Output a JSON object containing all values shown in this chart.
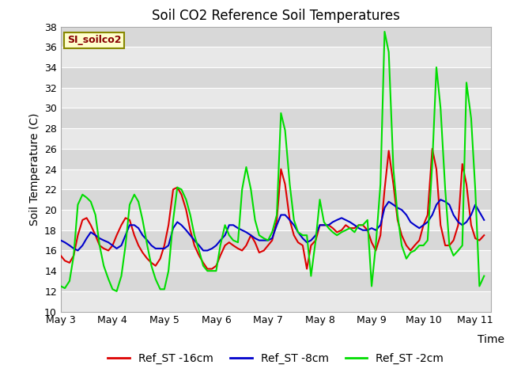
{
  "title": "Soil CO2 Reference Soil Temperatures",
  "xlabel": "Time",
  "ylabel": "Soil Temperature (C)",
  "ylim": [
    10,
    38
  ],
  "yticks": [
    10,
    12,
    14,
    16,
    18,
    20,
    22,
    24,
    26,
    28,
    30,
    32,
    34,
    36,
    38
  ],
  "legend_label": "SI_soilco2",
  "series": {
    "Ref_ST -16cm": {
      "color": "#dd0000",
      "x": [
        3.0,
        3.08,
        3.17,
        3.25,
        3.33,
        3.42,
        3.5,
        3.58,
        3.67,
        3.75,
        3.83,
        3.92,
        4.0,
        4.08,
        4.17,
        4.25,
        4.33,
        4.42,
        4.5,
        4.58,
        4.67,
        4.75,
        4.83,
        4.92,
        5.0,
        5.08,
        5.17,
        5.25,
        5.33,
        5.42,
        5.5,
        5.58,
        5.67,
        5.75,
        5.83,
        5.92,
        6.0,
        6.08,
        6.17,
        6.25,
        6.33,
        6.42,
        6.5,
        6.58,
        6.67,
        6.75,
        6.83,
        6.92,
        7.0,
        7.08,
        7.17,
        7.25,
        7.33,
        7.42,
        7.5,
        7.58,
        7.67,
        7.75,
        7.83,
        7.92,
        8.0,
        8.08,
        8.17,
        8.25,
        8.33,
        8.42,
        8.5,
        8.58,
        8.67,
        8.75,
        8.83,
        8.92,
        9.0,
        9.08,
        9.17,
        9.25,
        9.33,
        9.42,
        9.5,
        9.58,
        9.67,
        9.75,
        9.83,
        9.92,
        10.0,
        10.08,
        10.17,
        10.25,
        10.33,
        10.42,
        10.5,
        10.58,
        10.67,
        10.75,
        10.83,
        10.92,
        11.0,
        11.08,
        11.17
      ],
      "y": [
        15.5,
        15.0,
        14.8,
        15.5,
        17.5,
        19.0,
        19.2,
        18.5,
        17.5,
        16.5,
        16.2,
        16.0,
        16.5,
        17.5,
        18.5,
        19.2,
        19.0,
        17.5,
        16.5,
        15.8,
        15.2,
        14.8,
        14.5,
        15.2,
        16.5,
        18.5,
        22.0,
        22.2,
        21.5,
        20.0,
        18.0,
        16.5,
        15.5,
        14.8,
        14.2,
        14.2,
        14.5,
        15.5,
        16.5,
        16.8,
        16.5,
        16.2,
        16.0,
        16.5,
        17.5,
        16.8,
        15.8,
        16.0,
        16.5,
        17.0,
        19.0,
        24.0,
        22.5,
        19.0,
        17.5,
        16.8,
        16.5,
        14.2,
        16.5,
        17.0,
        18.5,
        18.5,
        18.5,
        18.2,
        17.8,
        18.0,
        18.5,
        18.2,
        18.2,
        18.5,
        18.5,
        18.0,
        16.8,
        16.0,
        17.5,
        22.0,
        25.8,
        22.5,
        19.0,
        17.5,
        16.5,
        16.0,
        16.5,
        17.0,
        18.5,
        19.5,
        26.0,
        24.0,
        18.5,
        16.5,
        16.5,
        17.0,
        18.5,
        24.5,
        22.5,
        18.5,
        17.2,
        17.0,
        17.5
      ]
    },
    "Ref_ST -8cm": {
      "color": "#0000cc",
      "x": [
        3.0,
        3.08,
        3.17,
        3.25,
        3.33,
        3.42,
        3.5,
        3.58,
        3.67,
        3.75,
        3.83,
        3.92,
        4.0,
        4.08,
        4.17,
        4.25,
        4.33,
        4.42,
        4.5,
        4.58,
        4.67,
        4.75,
        4.83,
        4.92,
        5.0,
        5.08,
        5.17,
        5.25,
        5.33,
        5.42,
        5.5,
        5.58,
        5.67,
        5.75,
        5.83,
        5.92,
        6.0,
        6.08,
        6.17,
        6.25,
        6.33,
        6.42,
        6.5,
        6.58,
        6.67,
        6.75,
        6.83,
        6.92,
        7.0,
        7.08,
        7.17,
        7.25,
        7.33,
        7.42,
        7.5,
        7.58,
        7.67,
        7.75,
        7.83,
        7.92,
        8.0,
        8.08,
        8.17,
        8.25,
        8.33,
        8.42,
        8.5,
        8.58,
        8.67,
        8.75,
        8.83,
        8.92,
        9.0,
        9.08,
        9.17,
        9.25,
        9.33,
        9.42,
        9.5,
        9.58,
        9.67,
        9.75,
        9.83,
        9.92,
        10.0,
        10.08,
        10.17,
        10.25,
        10.33,
        10.42,
        10.5,
        10.58,
        10.67,
        10.75,
        10.83,
        10.92,
        11.0,
        11.08,
        11.17
      ],
      "y": [
        17.0,
        16.8,
        16.5,
        16.2,
        16.0,
        16.5,
        17.2,
        17.8,
        17.5,
        17.2,
        17.0,
        16.8,
        16.5,
        16.2,
        16.5,
        17.5,
        18.5,
        18.5,
        18.2,
        17.5,
        17.0,
        16.5,
        16.2,
        16.2,
        16.2,
        16.5,
        18.2,
        18.8,
        18.5,
        18.0,
        17.5,
        17.0,
        16.5,
        16.0,
        16.0,
        16.2,
        16.5,
        17.0,
        17.5,
        18.5,
        18.5,
        18.2,
        18.0,
        17.8,
        17.5,
        17.2,
        17.0,
        17.0,
        17.0,
        17.2,
        18.5,
        19.5,
        19.5,
        19.0,
        18.5,
        17.8,
        17.2,
        16.8,
        17.0,
        17.5,
        18.5,
        18.5,
        18.5,
        18.8,
        19.0,
        19.2,
        19.0,
        18.8,
        18.5,
        18.2,
        18.0,
        18.0,
        18.2,
        18.0,
        18.5,
        20.2,
        20.8,
        20.5,
        20.2,
        20.0,
        19.5,
        18.8,
        18.5,
        18.2,
        18.5,
        18.8,
        19.5,
        20.5,
        21.0,
        20.8,
        20.5,
        19.5,
        18.8,
        18.5,
        18.8,
        19.5,
        20.5,
        19.8,
        19.0
      ]
    },
    "Ref_ST -2cm": {
      "color": "#00dd00",
      "x": [
        3.0,
        3.08,
        3.17,
        3.25,
        3.33,
        3.42,
        3.5,
        3.58,
        3.67,
        3.75,
        3.83,
        3.92,
        4.0,
        4.08,
        4.17,
        4.25,
        4.33,
        4.42,
        4.5,
        4.58,
        4.67,
        4.75,
        4.83,
        4.92,
        5.0,
        5.08,
        5.17,
        5.25,
        5.33,
        5.42,
        5.5,
        5.58,
        5.67,
        5.75,
        5.83,
        5.92,
        6.0,
        6.08,
        6.17,
        6.25,
        6.33,
        6.42,
        6.5,
        6.58,
        6.67,
        6.75,
        6.83,
        6.92,
        7.0,
        7.08,
        7.17,
        7.25,
        7.33,
        7.42,
        7.5,
        7.58,
        7.67,
        7.75,
        7.83,
        7.92,
        8.0,
        8.08,
        8.17,
        8.25,
        8.33,
        8.42,
        8.5,
        8.58,
        8.67,
        8.75,
        8.83,
        8.92,
        9.0,
        9.08,
        9.17,
        9.25,
        9.33,
        9.42,
        9.5,
        9.58,
        9.67,
        9.75,
        9.83,
        9.92,
        10.0,
        10.08,
        10.17,
        10.25,
        10.33,
        10.42,
        10.5,
        10.58,
        10.67,
        10.75,
        10.83,
        10.92,
        11.0,
        11.08,
        11.17
      ],
      "y": [
        12.5,
        12.3,
        13.0,
        15.5,
        20.5,
        21.5,
        21.2,
        20.8,
        19.5,
        16.5,
        14.5,
        13.2,
        12.2,
        12.0,
        13.5,
        16.5,
        20.5,
        21.5,
        20.8,
        19.0,
        16.5,
        14.5,
        13.2,
        12.2,
        12.2,
        14.0,
        19.0,
        22.2,
        22.0,
        21.0,
        19.5,
        17.5,
        16.0,
        14.5,
        14.0,
        14.0,
        14.0,
        16.5,
        18.5,
        17.5,
        17.0,
        16.8,
        22.0,
        24.2,
        22.0,
        19.0,
        17.5,
        17.2,
        17.0,
        17.8,
        19.5,
        29.5,
        27.8,
        22.5,
        19.0,
        17.8,
        17.5,
        17.5,
        13.5,
        17.0,
        21.0,
        18.8,
        18.2,
        17.8,
        17.5,
        17.8,
        18.0,
        18.2,
        17.8,
        18.5,
        18.5,
        19.0,
        12.5,
        16.5,
        22.5,
        37.5,
        35.5,
        24.0,
        19.5,
        16.5,
        15.2,
        15.8,
        16.0,
        16.5,
        16.5,
        17.0,
        24.5,
        34.0,
        30.0,
        22.0,
        16.5,
        15.5,
        16.0,
        16.5,
        32.5,
        29.0,
        22.0,
        12.5,
        13.5
      ]
    }
  },
  "xticks": [
    3,
    4,
    5,
    6,
    7,
    8,
    9,
    10,
    11
  ],
  "xtick_labels": [
    "May 3",
    "May 4",
    "May 5",
    "May 6",
    "May 7",
    "May 8",
    "May 9",
    "May 10",
    "May 11"
  ],
  "xlim": [
    3.0,
    11.3
  ],
  "ylim_bottom": 10,
  "ylim_top": 38,
  "band_colors": [
    "#e8e8e8",
    "#d8d8d8"
  ],
  "title_fontsize": 12,
  "axis_label_fontsize": 10,
  "tick_fontsize": 9,
  "legend_fontsize": 10,
  "linewidth": 1.5,
  "grid_color": "#ffffff",
  "grid_linewidth": 0.8
}
